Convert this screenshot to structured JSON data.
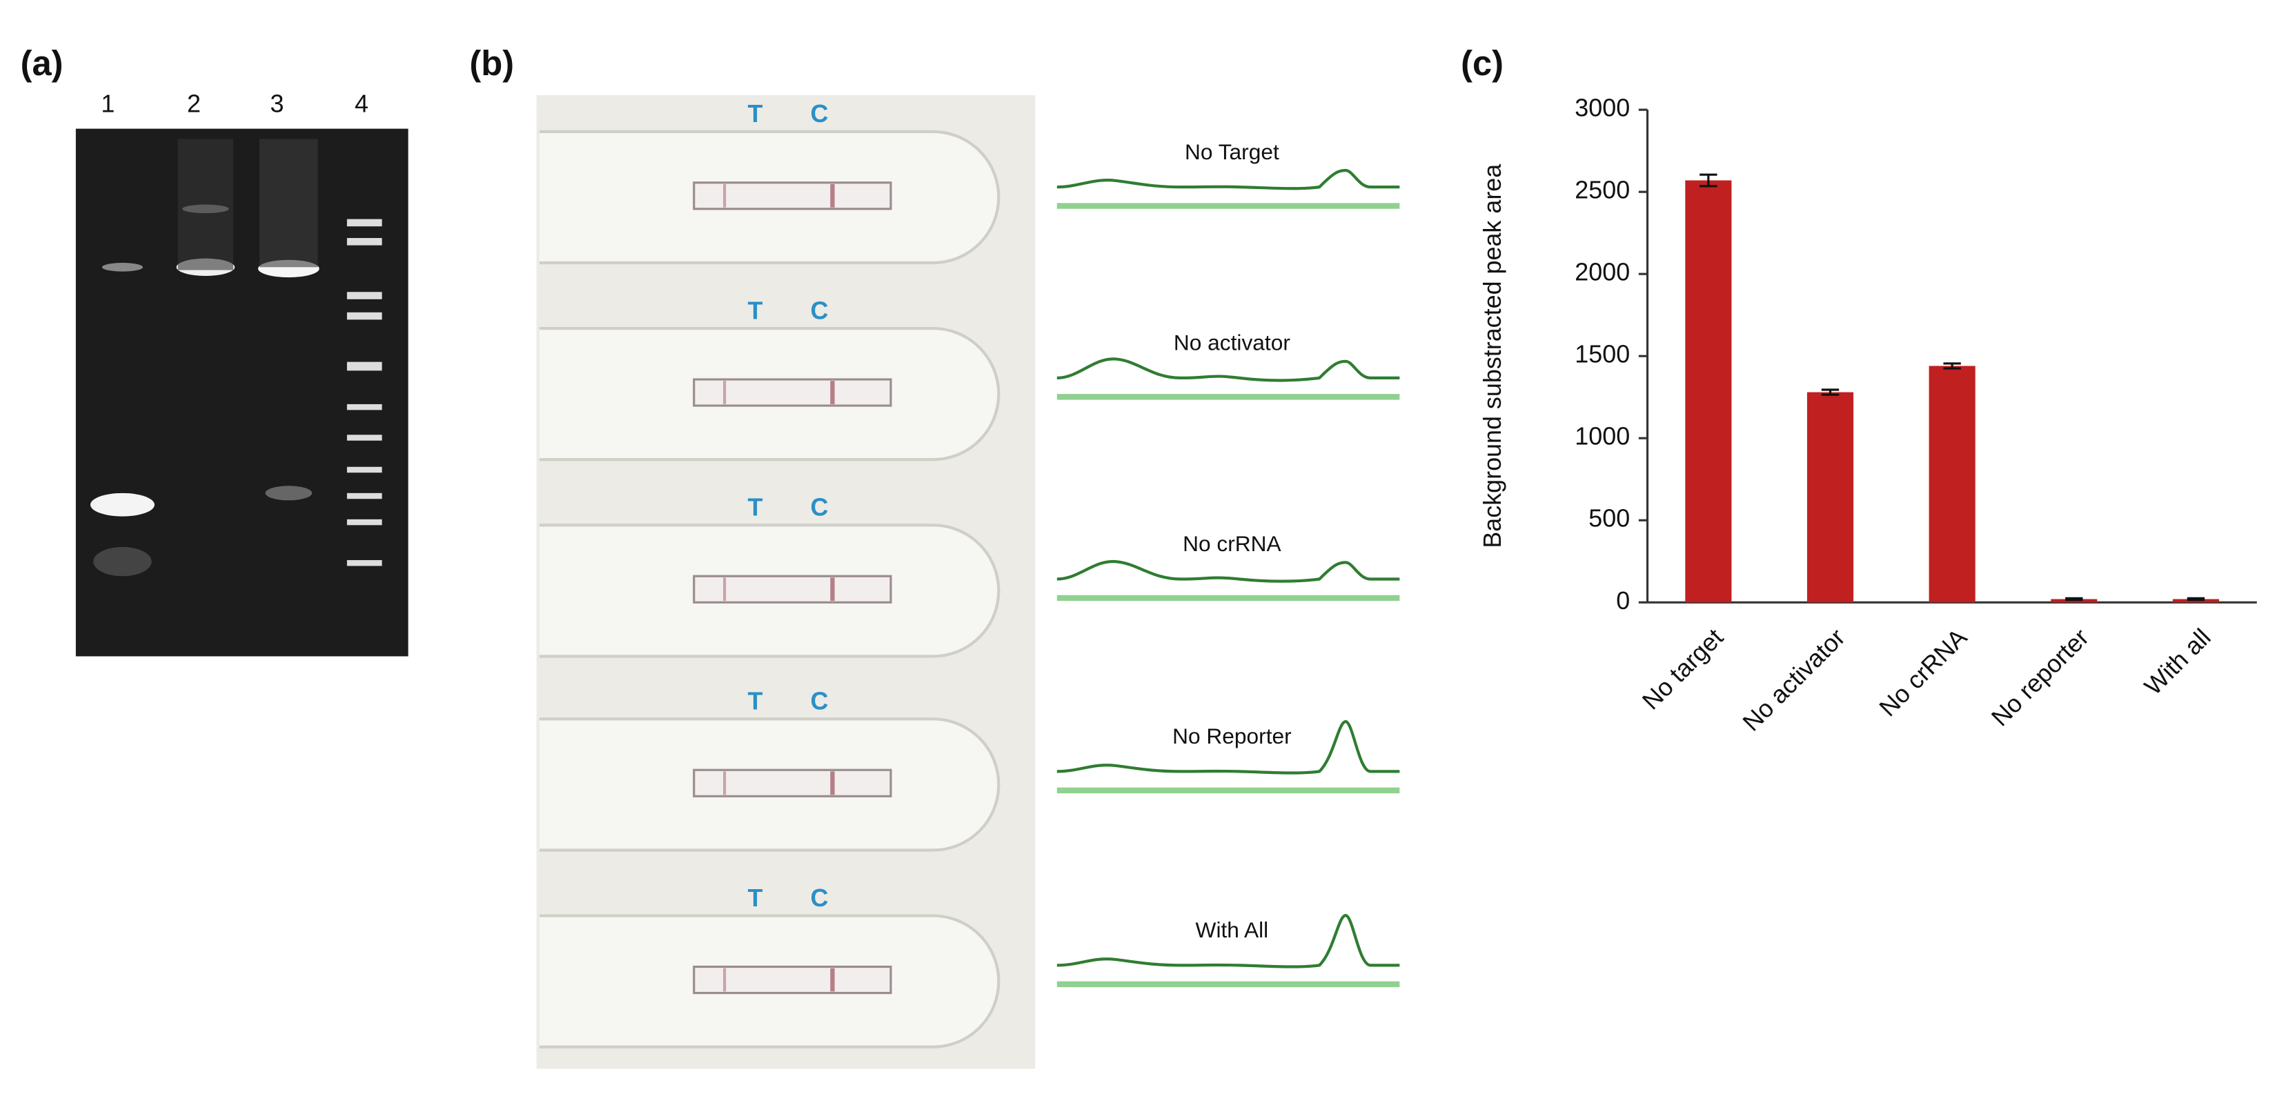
{
  "panel_labels": [
    "(a)",
    "(b)",
    "(c)"
  ],
  "gel": {
    "lanes": [
      "1",
      "2",
      "3",
      "4"
    ]
  },
  "strips": {
    "marks": [
      "T",
      "C"
    ],
    "labels": [
      "No Target",
      "No activator",
      "No crRNA",
      "No Reporter",
      "With All"
    ]
  },
  "chart_data": {
    "type": "bar",
    "ylabel": "Background substracted peak area",
    "categories": [
      "No target",
      "No activator",
      "No crRNA",
      "No reporter",
      "With all"
    ],
    "values": [
      2570,
      1280,
      1440,
      20,
      20
    ],
    "errors": [
      35,
      15,
      15,
      5,
      5
    ],
    "color": "#c0201f",
    "ylim": [
      0,
      3000
    ],
    "yticks": [
      0,
      500,
      1000,
      1500,
      2000,
      2500,
      3000
    ],
    "grid": false
  }
}
